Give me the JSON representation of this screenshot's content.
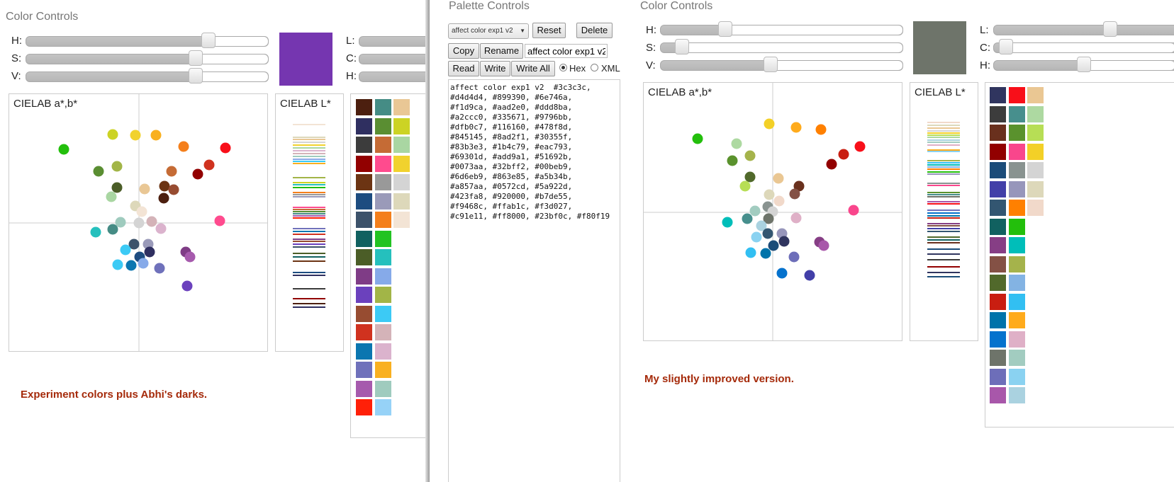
{
  "left": {
    "title": "Color Controls",
    "sliders": {
      "h": "H:",
      "s": "S:",
      "v": "V:",
      "l": "L:",
      "c": "C:",
      "h2": "H:"
    },
    "slider_levels": {
      "h": 0.76,
      "s": 0.7,
      "v": 0.7
    },
    "preview_color": "#7536b0",
    "ab_title": "CIELAB a*,b*",
    "l_title": "CIELAB L*",
    "note": "Experiment colors plus Abhi's darks.",
    "swatches": [
      [
        "#4c1f0f",
        "#458c85",
        "#e9c795"
      ],
      [
        "#2f2f60",
        "#5a8e32",
        "#ccd324"
      ],
      [
        "#3c3c3c",
        "#c56b35",
        "#a9d6a2"
      ],
      [
        "#920000",
        "#ff4b8e",
        "#f1d22e"
      ],
      [
        "#6c3413",
        "#999999",
        "#d4d4d4"
      ],
      [
        "#1d4c80",
        "#9a9ab9",
        "#ddd8ba"
      ],
      [
        "#3c526a",
        "#f47f1b",
        "#f3e4d5"
      ],
      [
        "#116160",
        "#22c322",
        ""
      ],
      [
        "#4b5d27",
        "#25c0bd",
        ""
      ],
      [
        "#7f3c86",
        "#86aae9",
        ""
      ],
      [
        "#6b41bd",
        "#a2b547",
        ""
      ],
      [
        "#974c31",
        "#3ccaf5",
        ""
      ],
      [
        "#d0321f",
        "#d4b3b8",
        ""
      ],
      [
        "#0b76b0",
        "#dbb3cd",
        ""
      ],
      [
        "#6f71bb",
        "#f9b020",
        ""
      ],
      [
        "#a65aad",
        "#9fcbbe",
        ""
      ],
      [
        "#ff2008",
        "#96d2f7",
        ""
      ]
    ]
  },
  "middle": {
    "title": "Palette Controls",
    "select_value": "affect color exp1 v2",
    "buttons": {
      "reset": "Reset",
      "delete": "Delete",
      "copy": "Copy",
      "rename": "Rename",
      "read": "Read",
      "write": "Write",
      "write_all": "Write All"
    },
    "name_value": "affect color exp1 v2",
    "radio_hex": "Hex",
    "radio_xml": "XML",
    "code": "affect color exp1 v2  #3c3c3c,\n#d4d4d4, #899390, #6e746a,\n#f1d9ca, #aad2e0, #ddd8ba,\n#a2ccc0, #335671, #9796bb,\n#dfb0c7, #116160, #478f8d,\n#845145, #8ad2f1, #30355f,\n#83b3e3, #1b4c79, #eac793,\n#69301d, #add9a1, #51692b,\n#0073aa, #32bff2, #00beb9,\n#6d6eb9, #863e85, #a5b34b,\n#a857aa, #0572cd, #5a922d,\n#423fa8, #920000, #b7de55,\n#f9468c, #ffab1c, #f3d027,\n#c91e11, #ff8000, #23bf0c, #f80f19"
  },
  "right": {
    "title": "Color Controls",
    "sliders": {
      "h": "H:",
      "s": "S:",
      "v": "V:",
      "l": "L:",
      "c": "C:",
      "h2": "H:"
    },
    "slider_levels": {
      "h": 0.27,
      "s": 0.09,
      "v": 0.46,
      "l": 0.97,
      "c": 0.09,
      "h2": 0.7
    },
    "preview_color": "#6e746a",
    "ab_title": "CIELAB a*,b*",
    "l_title": "CIELAB L*",
    "note": "My slightly improved version.",
    "swatches": [
      [
        "#30355f",
        "#f80f19",
        "#eac793"
      ],
      [
        "#3c3c3c",
        "#478f8d",
        "#add9a1"
      ],
      [
        "#69301d",
        "#5a922d",
        "#b7de55"
      ],
      [
        "#920000",
        "#f9468c",
        "#f3d027"
      ],
      [
        "#1b4c79",
        "#899390",
        "#d4d4d4"
      ],
      [
        "#423fa8",
        "#9796bb",
        "#ddd8ba"
      ],
      [
        "#335671",
        "#ff8000",
        "#f1d9ca"
      ],
      [
        "#116160",
        "#23bf0c",
        ""
      ],
      [
        "#863e85",
        "#00beb9",
        ""
      ],
      [
        "#845145",
        "#a5b34b",
        ""
      ],
      [
        "#51692b",
        "#83b3e3",
        ""
      ],
      [
        "#c91e11",
        "#32bff2",
        ""
      ],
      [
        "#0073aa",
        "#ffab1c",
        ""
      ],
      [
        "#0572cd",
        "#dfb0c7",
        ""
      ],
      [
        "#6e746a",
        "#a2ccc0",
        ""
      ],
      [
        "#6d6eb9",
        "#8ad2f1",
        ""
      ],
      [
        "#a857aa",
        "#aad2e0",
        ""
      ]
    ]
  }
}
